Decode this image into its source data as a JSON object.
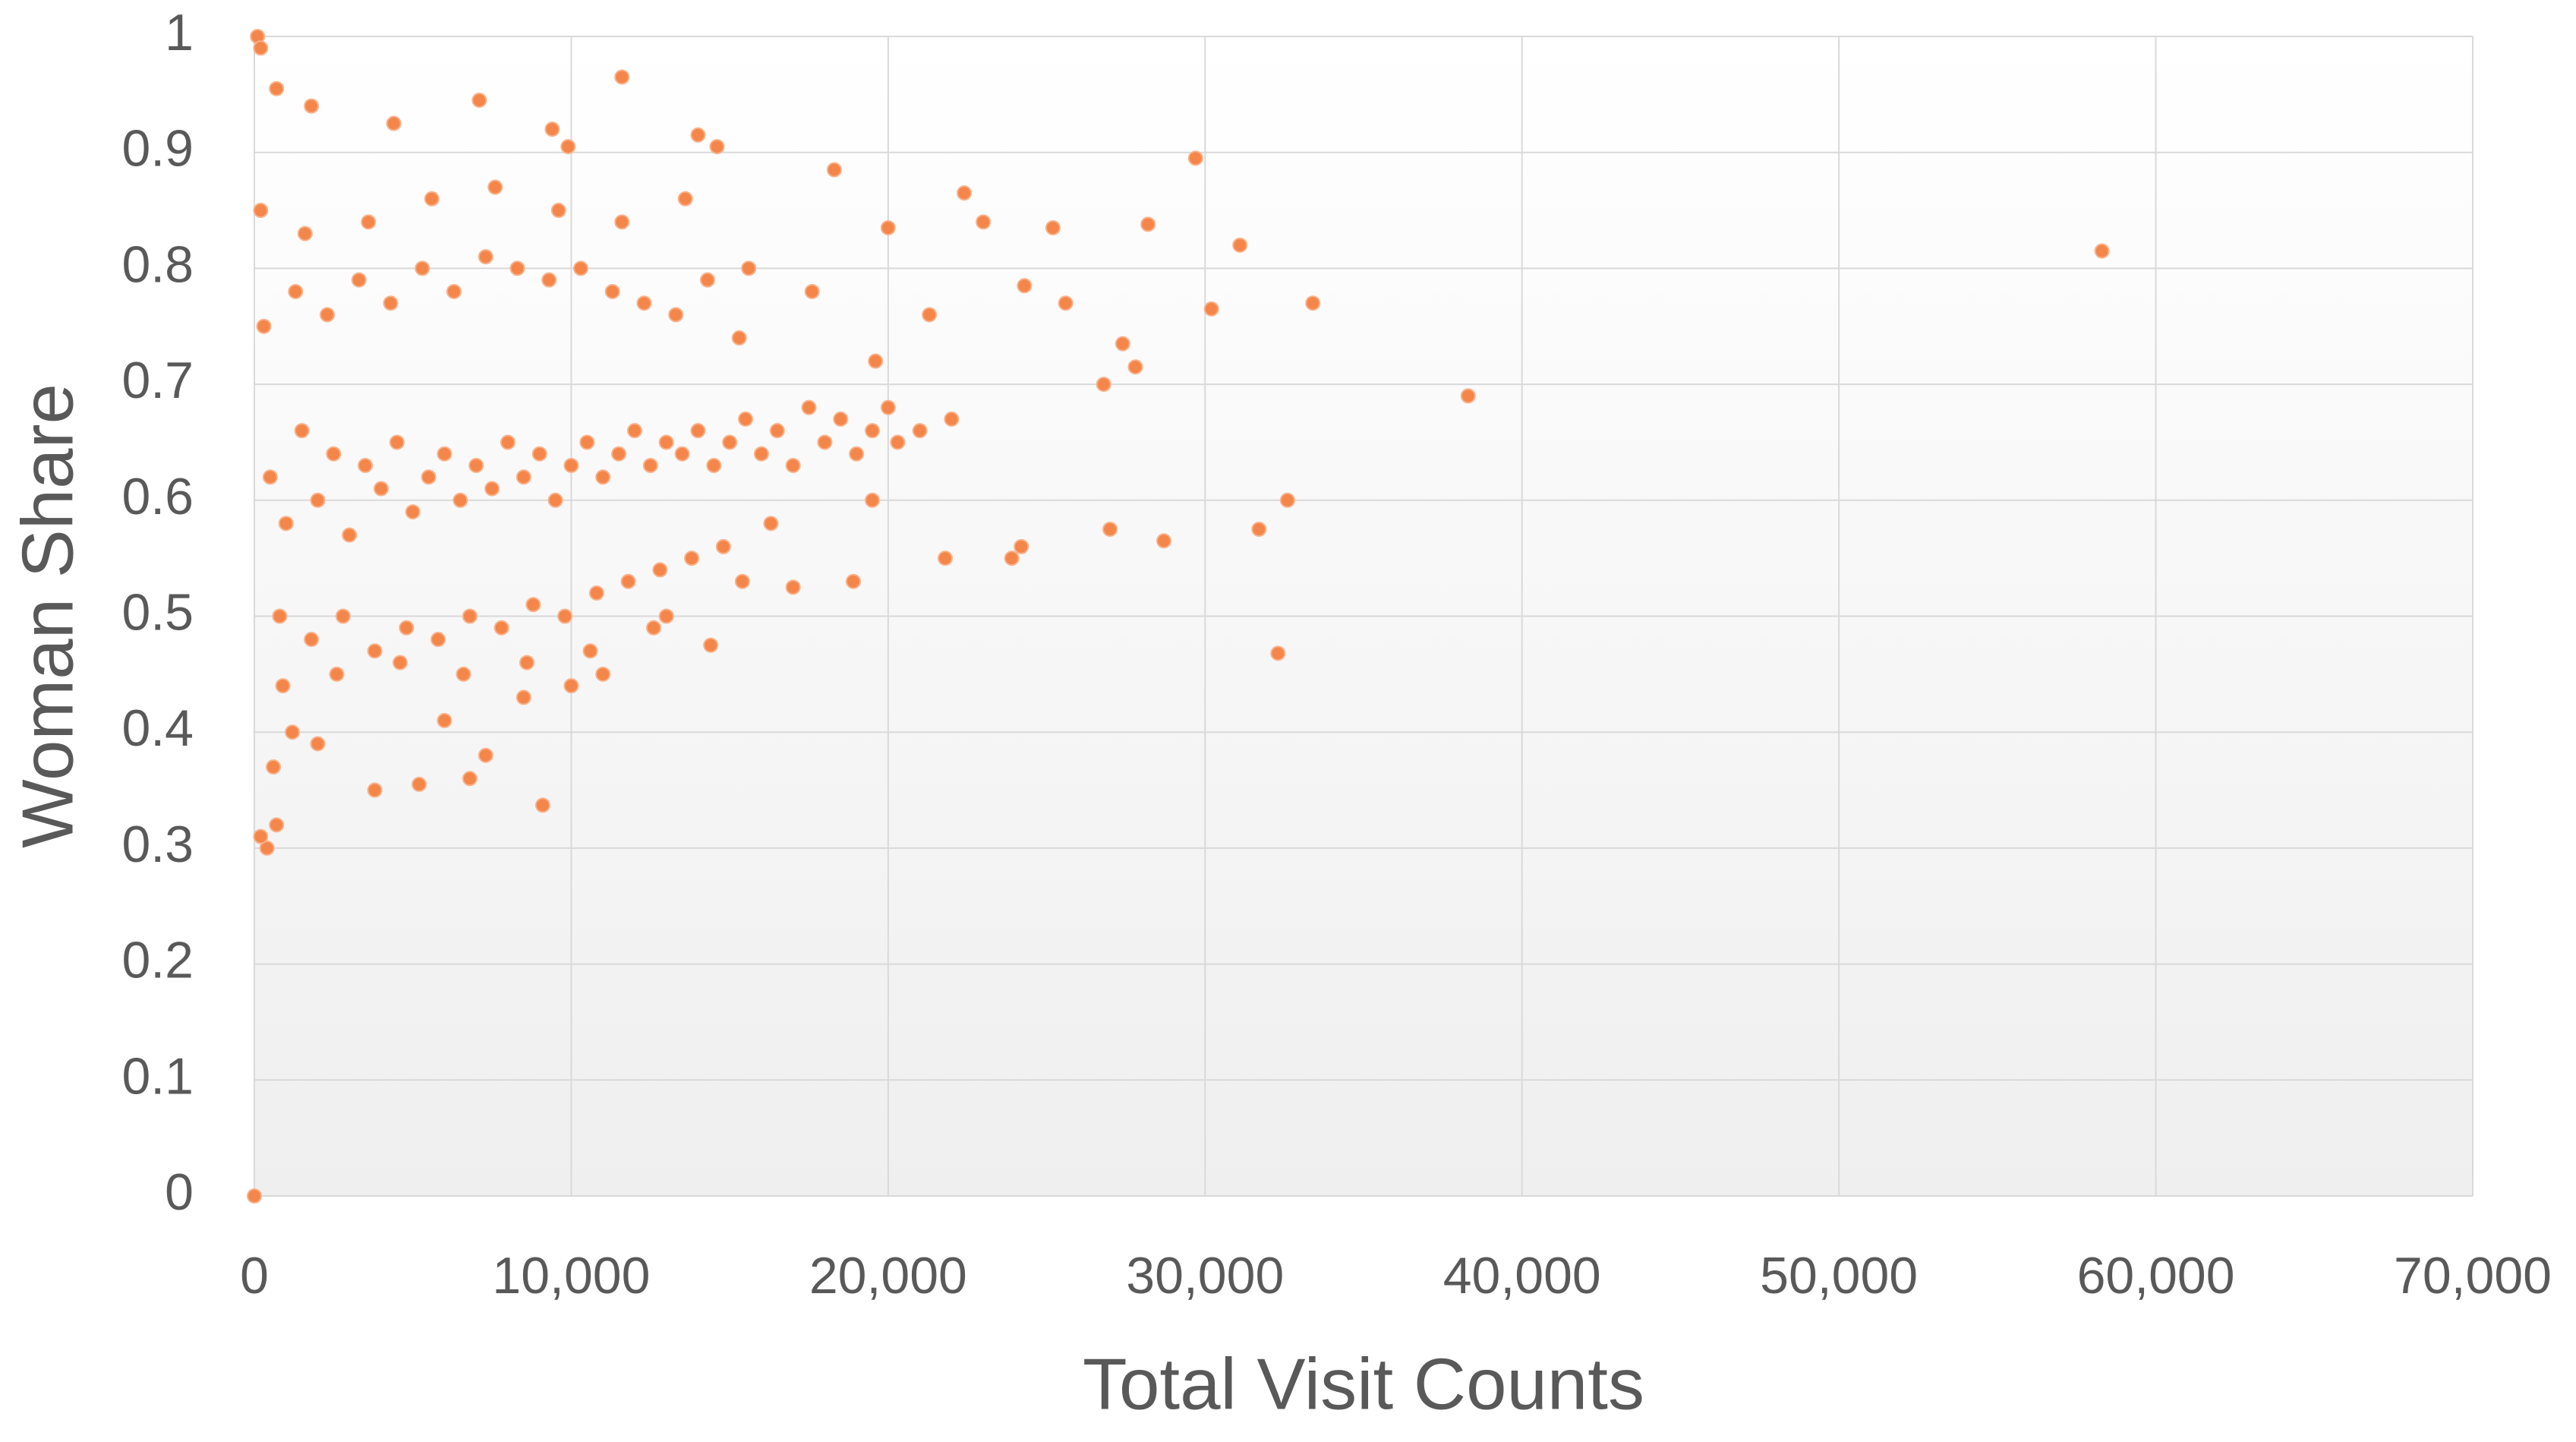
{
  "chart_data": {
    "type": "scatter",
    "x_label": "Total Visit Counts",
    "y_label": "Woman Share",
    "color": "#f4864a",
    "grid": true,
    "xlim": [
      0,
      70000
    ],
    "ylim": [
      0,
      1
    ],
    "xticks": [
      0,
      {
        "value": 10000,
        "label": "10,000"
      },
      {
        "value": 20000,
        "label": "20,000"
      },
      {
        "value": 30000,
        "label": "30,000"
      },
      {
        "value": 40000,
        "label": "40,000"
      },
      {
        "value": 50000,
        "label": "50,000"
      },
      {
        "value": 60000,
        "label": "60,000"
      },
      {
        "value": 70000,
        "label": "70,000"
      }
    ],
    "yticks": [
      0,
      0.1,
      0.2,
      0.3,
      0.4,
      0.5,
      0.6,
      0.7,
      0.8,
      0.9,
      1
    ],
    "x": [
      58300,
      38300,
      29700,
      31100,
      33400,
      32300,
      32600,
      31700,
      30200,
      28200,
      25200,
      22400,
      23000,
      27000,
      28700,
      27400,
      26800,
      27800,
      25600,
      24300,
      11600,
      7100,
      700,
      1800,
      100,
      200,
      0,
      9100,
      3800,
      5200,
      7300,
      400,
      200,
      700,
      14000,
      14600,
      9900,
      9400,
      4400,
      18300,
      20000,
      21300,
      21800,
      23900,
      24200,
      19500,
      20300,
      21000,
      22000,
      18900,
      17000,
      14400,
      15400,
      13000,
      11000,
      10000,
      8500,
      6800,
      6000,
      2000,
      600,
      1200,
      500,
      1000,
      1500,
      2000,
      2500,
      3000,
      3500,
      4000,
      4500,
      5000,
      5500,
      6000,
      6500,
      7000,
      7500,
      8000,
      8500,
      9000,
      9500,
      10000,
      10500,
      11000,
      11500,
      12000,
      12500,
      13000,
      13500,
      14000,
      14500,
      15000,
      15500,
      16000,
      16500,
      17000,
      17500,
      18000,
      18500,
      19000,
      19500,
      20000,
      300,
      800,
      1300,
      1800,
      2300,
      2800,
      3300,
      3800,
      4300,
      4800,
      5300,
      5800,
      6300,
      6800,
      7300,
      7800,
      8300,
      8800,
      9300,
      9800,
      10300,
      10800,
      11300,
      11800,
      12300,
      12800,
      13300,
      13800,
      14300,
      14800,
      15300,
      16300,
      200,
      900,
      1600,
      2600,
      3600,
      4600,
      5600,
      6600,
      7600,
      8600,
      9600,
      10600,
      11600,
      12600,
      13600,
      15600,
      17600,
      19600
    ],
    "values": [
      0.815,
      0.69,
      0.895,
      0.82,
      0.77,
      0.468,
      0.6,
      0.575,
      0.765,
      0.838,
      0.835,
      0.865,
      0.84,
      0.575,
      0.565,
      0.735,
      0.7,
      0.715,
      0.77,
      0.785,
      0.965,
      0.945,
      0.955,
      0.94,
      1,
      0.99,
      0,
      0.337,
      0.35,
      0.355,
      0.38,
      0.3,
      0.31,
      0.32,
      0.915,
      0.905,
      0.905,
      0.92,
      0.925,
      0.885,
      0.835,
      0.76,
      0.55,
      0.55,
      0.56,
      0.6,
      0.65,
      0.66,
      0.67,
      0.53,
      0.525,
      0.475,
      0.53,
      0.5,
      0.45,
      0.44,
      0.43,
      0.36,
      0.41,
      0.39,
      0.37,
      0.4,
      0.62,
      0.58,
      0.66,
      0.6,
      0.64,
      0.57,
      0.63,
      0.61,
      0.65,
      0.59,
      0.62,
      0.64,
      0.6,
      0.63,
      0.61,
      0.65,
      0.62,
      0.64,
      0.6,
      0.63,
      0.65,
      0.62,
      0.64,
      0.66,
      0.63,
      0.65,
      0.64,
      0.66,
      0.63,
      0.65,
      0.67,
      0.64,
      0.66,
      0.63,
      0.68,
      0.65,
      0.67,
      0.64,
      0.66,
      0.68,
      0.75,
      0.5,
      0.78,
      0.48,
      0.76,
      0.5,
      0.79,
      0.47,
      0.77,
      0.49,
      0.8,
      0.48,
      0.78,
      0.5,
      0.81,
      0.49,
      0.8,
      0.51,
      0.79,
      0.5,
      0.8,
      0.52,
      0.78,
      0.53,
      0.77,
      0.54,
      0.76,
      0.55,
      0.79,
      0.56,
      0.74,
      0.58,
      0.85,
      0.44,
      0.83,
      0.45,
      0.84,
      0.46,
      0.86,
      0.45,
      0.87,
      0.46,
      0.85,
      0.47,
      0.84,
      0.49,
      0.86,
      0.8,
      0.78,
      0.72
    ]
  }
}
